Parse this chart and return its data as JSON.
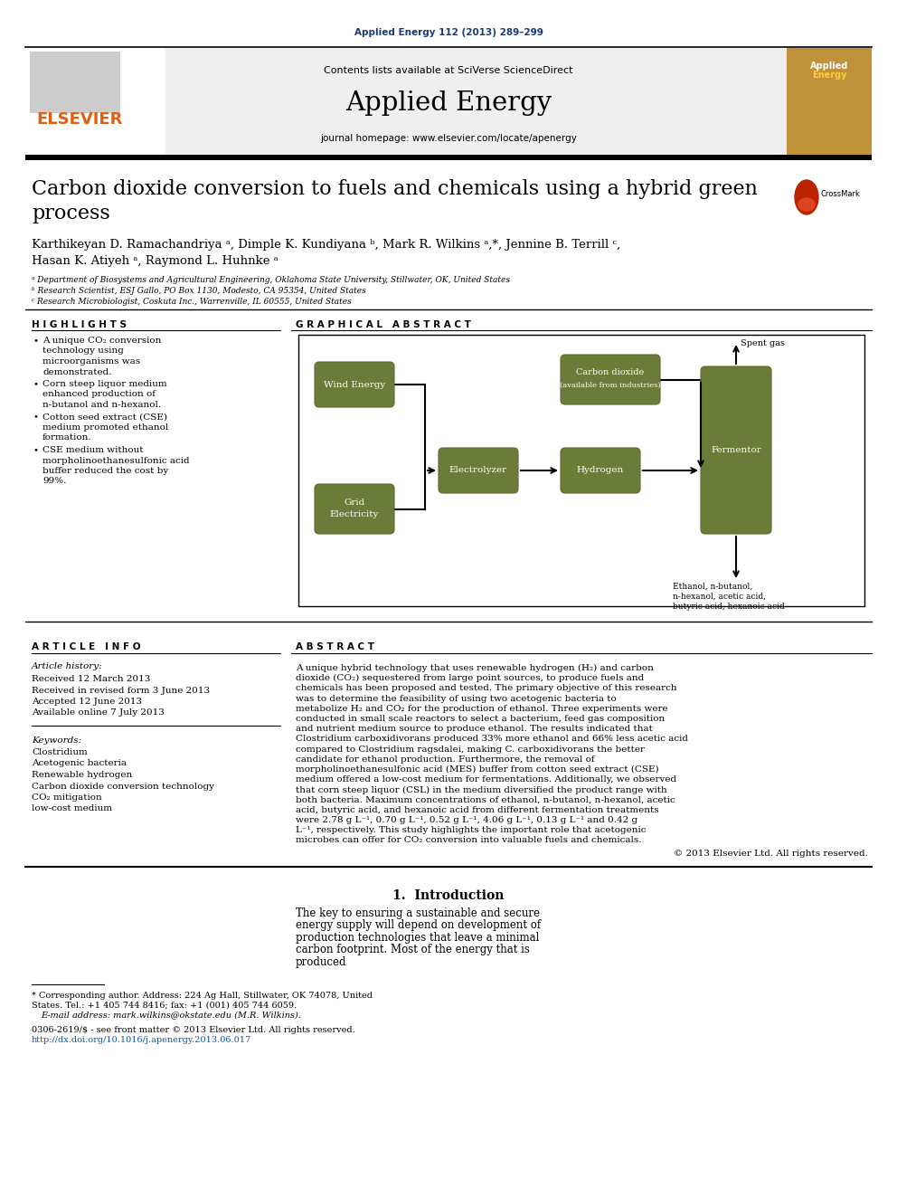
{
  "page_title": "Applied Energy 112 (2013) 289–299",
  "journal_name": "Applied Energy",
  "journal_homepage": "journal homepage: www.elsevier.com/locate/apenergy",
  "contents_line": "Contents lists available at SciVerse ScienceDirect",
  "paper_title_line1": "Carbon dioxide conversion to fuels and chemicals using a hybrid green",
  "paper_title_line2": "process",
  "authors_line1": "Karthikeyan D. Ramachandriya ᵃ, Dimple K. Kundiyana ᵇ, Mark R. Wilkins ᵃ,*, Jennine B. Terrill ᶜ,",
  "authors_line2": "Hasan K. Atiyeh ᵃ, Raymond L. Huhnke ᵃ",
  "affil_a": "ᵃ Department of Biosystems and Agricultural Engineering, Oklahoma State University, Stillwater, OK, United States",
  "affil_b": "ᵇ Research Scientist, ESJ Gallo, PO Box 1130, Modesto, CA 95354, United States",
  "affil_c": "ᶜ Research Microbiologist, Coskuta Inc., Warrenville, IL 60555, United States",
  "highlights_title": "H I G H L I G H T S",
  "highlights": [
    "A unique CO₂ conversion technology using microorganisms was demonstrated.",
    "Corn steep liquor medium enhanced production of n-butanol and n-hexanol.",
    "Cotton seed extract (CSE) medium promoted ethanol formation.",
    "CSE medium without morpholinoethanesulfonic acid buffer reduced the cost by 99%."
  ],
  "graphical_abstract_title": "G R A P H I C A L   A B S T R A C T",
  "box_color": "#6b7c38",
  "article_info_title": "A R T I C L E   I N F O",
  "article_history_title": "Article history:",
  "article_history": [
    "Received 12 March 2013",
    "Received in revised form 3 June 2013",
    "Accepted 12 June 2013",
    "Available online 7 July 2013"
  ],
  "keywords_title": "Keywords:",
  "keywords": [
    "Clostridium",
    "Acetogenic bacteria",
    "Renewable hydrogen",
    "Carbon dioxide conversion technology",
    "CO₂ mitigation",
    "low-cost medium"
  ],
  "abstract_title": "A B S T R A C T",
  "abstract_text": "A unique hybrid technology that uses renewable hydrogen (H₂) and carbon dioxide (CO₂) sequestered from large point sources, to produce fuels and chemicals has been proposed and tested. The primary objective of this research was to determine the feasibility of using two acetogenic bacteria to metabolize H₂ and CO₂ for the production of ethanol. Three experiments were conducted in small scale reactors to select a bacterium, feed gas composition and nutrient medium source to produce ethanol. The results indicated that Clostridium carboxidivorans produced 33% more ethanol and 66% less acetic acid compared to Clostridium ragsdalei, making C. carboxidivorans the better candidate for ethanol production. Furthermore, the removal of morpholinoethanesulfonic acid (MES) buffer from cotton seed extract (CSE) medium offered a low-cost medium for fermentations. Additionally, we observed that corn steep liquor (CSL) in the medium diversified the product range with both bacteria. Maximum concentrations of ethanol, n-butanol, n-hexanol, acetic acid, butyric acid, and hexanoic acid from different fermentation treatments were 2.78 g L⁻¹, 0.70 g L⁻¹, 0.52 g L⁻¹, 4.06 g L⁻¹, 0.13 g L⁻¹ and 0.42 g L⁻¹, respectively. This study highlights the important role that acetogenic microbes can offer for CO₂ conversion into valuable fuels and chemicals.",
  "copyright_line": "© 2013 Elsevier Ltd. All rights reserved.",
  "intro_title": "1.  Introduction",
  "intro_col2_text": "The key to ensuring a sustainable and secure energy supply will depend on development of production technologies that leave a minimal carbon footprint. Most of the energy that is produced",
  "footer_star": "* Corresponding author. Address: 224 Ag Hall, Stillwater, OK 74078, United",
  "footer_star2": "States. Tel.: +1 405 744 8416; fax: +1 (001) 405 744 6059.",
  "footer_email": "E-mail address: mark.wilkins@okstate.edu (M.R. Wilkins).",
  "footer_issn": "0306-2619/$ - see front matter © 2013 Elsevier Ltd. All rights reserved.",
  "footer_doi": "http://dx.doi.org/10.1016/j.apenergy.2013.06.017",
  "bg_header": "#efefef",
  "title_color_blue": "#1a3a7a",
  "link_color": "#1155aa",
  "elsevier_orange": "#e06010",
  "gc_dark": "#5a6b2e"
}
